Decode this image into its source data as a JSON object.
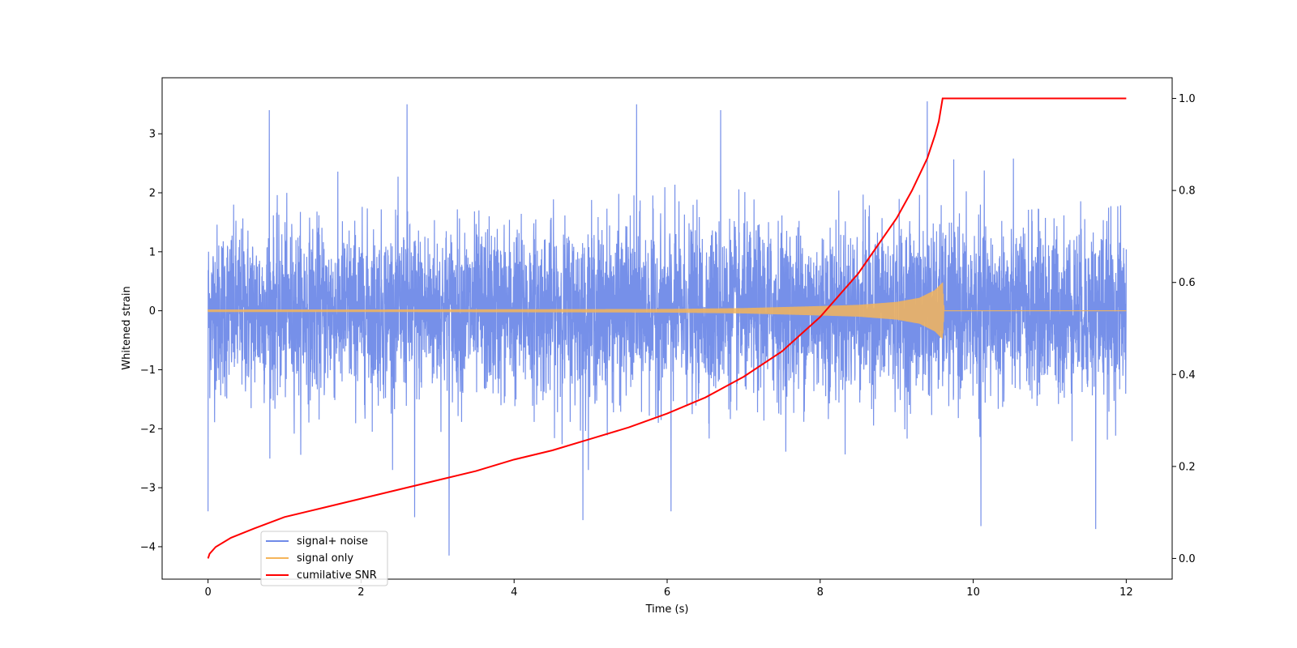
{
  "chart_data": {
    "type": "line",
    "xlabel": "Time (s)",
    "ylabel": "Whitened strain",
    "y2label": "",
    "xlim": [
      -0.6,
      12.6
    ],
    "ylim": [
      -4.55,
      3.95
    ],
    "y2lim": [
      -0.045,
      1.045
    ],
    "xticks": [
      0,
      2,
      4,
      6,
      8,
      10,
      12
    ],
    "yticks": [
      -4,
      -3,
      -2,
      -1,
      0,
      1,
      2,
      3
    ],
    "y2ticks": [
      0.0,
      0.2,
      0.4,
      0.6,
      0.8,
      1.0
    ],
    "grid": false,
    "legend_position": "lower-left",
    "series": [
      {
        "name": "signal+ noise",
        "color": "#6f8ae8",
        "axis": "left",
        "description_values": {
          "x_range": [
            0,
            12
          ],
          "typical_band": [
            -1.8,
            1.8
          ],
          "notable_peaks": [
            [
              0.0,
              1.75
            ],
            [
              0.0,
              -3.4
            ],
            [
              0.8,
              3.4
            ],
            [
              2.6,
              3.5
            ],
            [
              2.7,
              -3.5
            ],
            [
              3.15,
              -4.15
            ],
            [
              4.9,
              -3.55
            ],
            [
              5.6,
              3.5
            ],
            [
              6.7,
              3.4
            ],
            [
              6.05,
              -3.4
            ],
            [
              9.4,
              3.55
            ],
            [
              10.1,
              -3.65
            ],
            [
              11.6,
              -3.7
            ]
          ]
        }
      },
      {
        "name": "signal only",
        "color": "#f5b55a",
        "axis": "left",
        "envelope": {
          "x": [
            0,
            2,
            4,
            6,
            7,
            8,
            8.5,
            9,
            9.3,
            9.5,
            9.6,
            9.62,
            12
          ],
          "amplitude": [
            0.02,
            0.02,
            0.025,
            0.03,
            0.045,
            0.08,
            0.1,
            0.15,
            0.22,
            0.35,
            0.48,
            0.0,
            0.0
          ]
        }
      },
      {
        "name": "cumilative SNR",
        "color": "#ff0000",
        "axis": "right",
        "x": [
          0,
          0.02,
          0.1,
          0.3,
          0.6,
          1,
          1.5,
          2,
          2.5,
          3,
          3.5,
          4,
          4.5,
          5,
          5.5,
          6,
          6.5,
          7,
          7.5,
          8,
          8.5,
          9,
          9.2,
          9.4,
          9.5,
          9.55,
          9.6,
          9.62,
          12
        ],
        "values": [
          0.0,
          0.01,
          0.025,
          0.045,
          0.065,
          0.09,
          0.11,
          0.13,
          0.15,
          0.17,
          0.19,
          0.215,
          0.235,
          0.26,
          0.285,
          0.315,
          0.35,
          0.395,
          0.45,
          0.525,
          0.62,
          0.74,
          0.8,
          0.87,
          0.92,
          0.95,
          1.0,
          1.0,
          1.0
        ]
      }
    ]
  }
}
